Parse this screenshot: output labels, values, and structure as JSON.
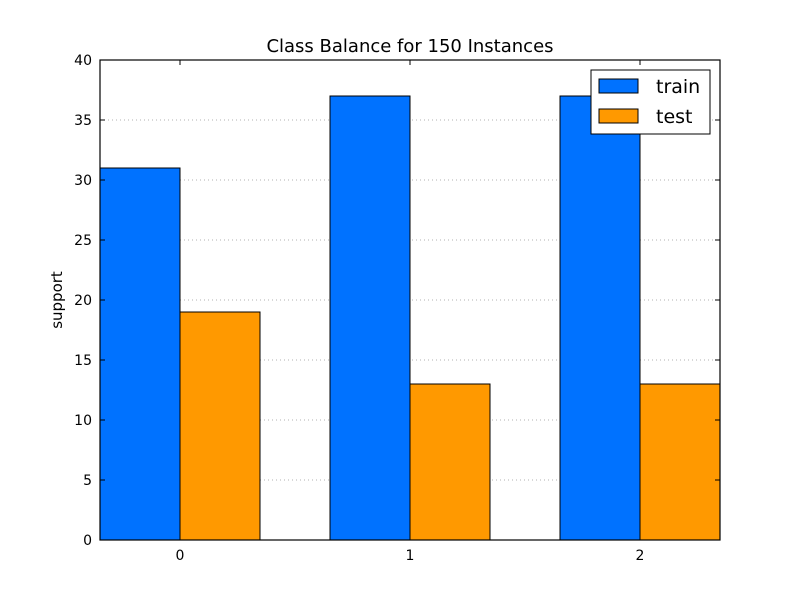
{
  "chart_data": {
    "type": "bar",
    "title": "Class Balance for 150 Instances",
    "xlabel": "",
    "ylabel": "support",
    "categories": [
      "0",
      "1",
      "2"
    ],
    "series": [
      {
        "name": "train",
        "values": [
          31,
          37,
          37
        ],
        "color": "#0072ff"
      },
      {
        "name": "test",
        "values": [
          19,
          13,
          13
        ],
        "color": "#ff9900"
      }
    ],
    "ylim": [
      0,
      40
    ],
    "yticks": [
      0,
      5,
      10,
      15,
      20,
      25,
      30,
      35,
      40
    ],
    "grid": "horizontal-dotted",
    "legend_position": "top-right"
  }
}
